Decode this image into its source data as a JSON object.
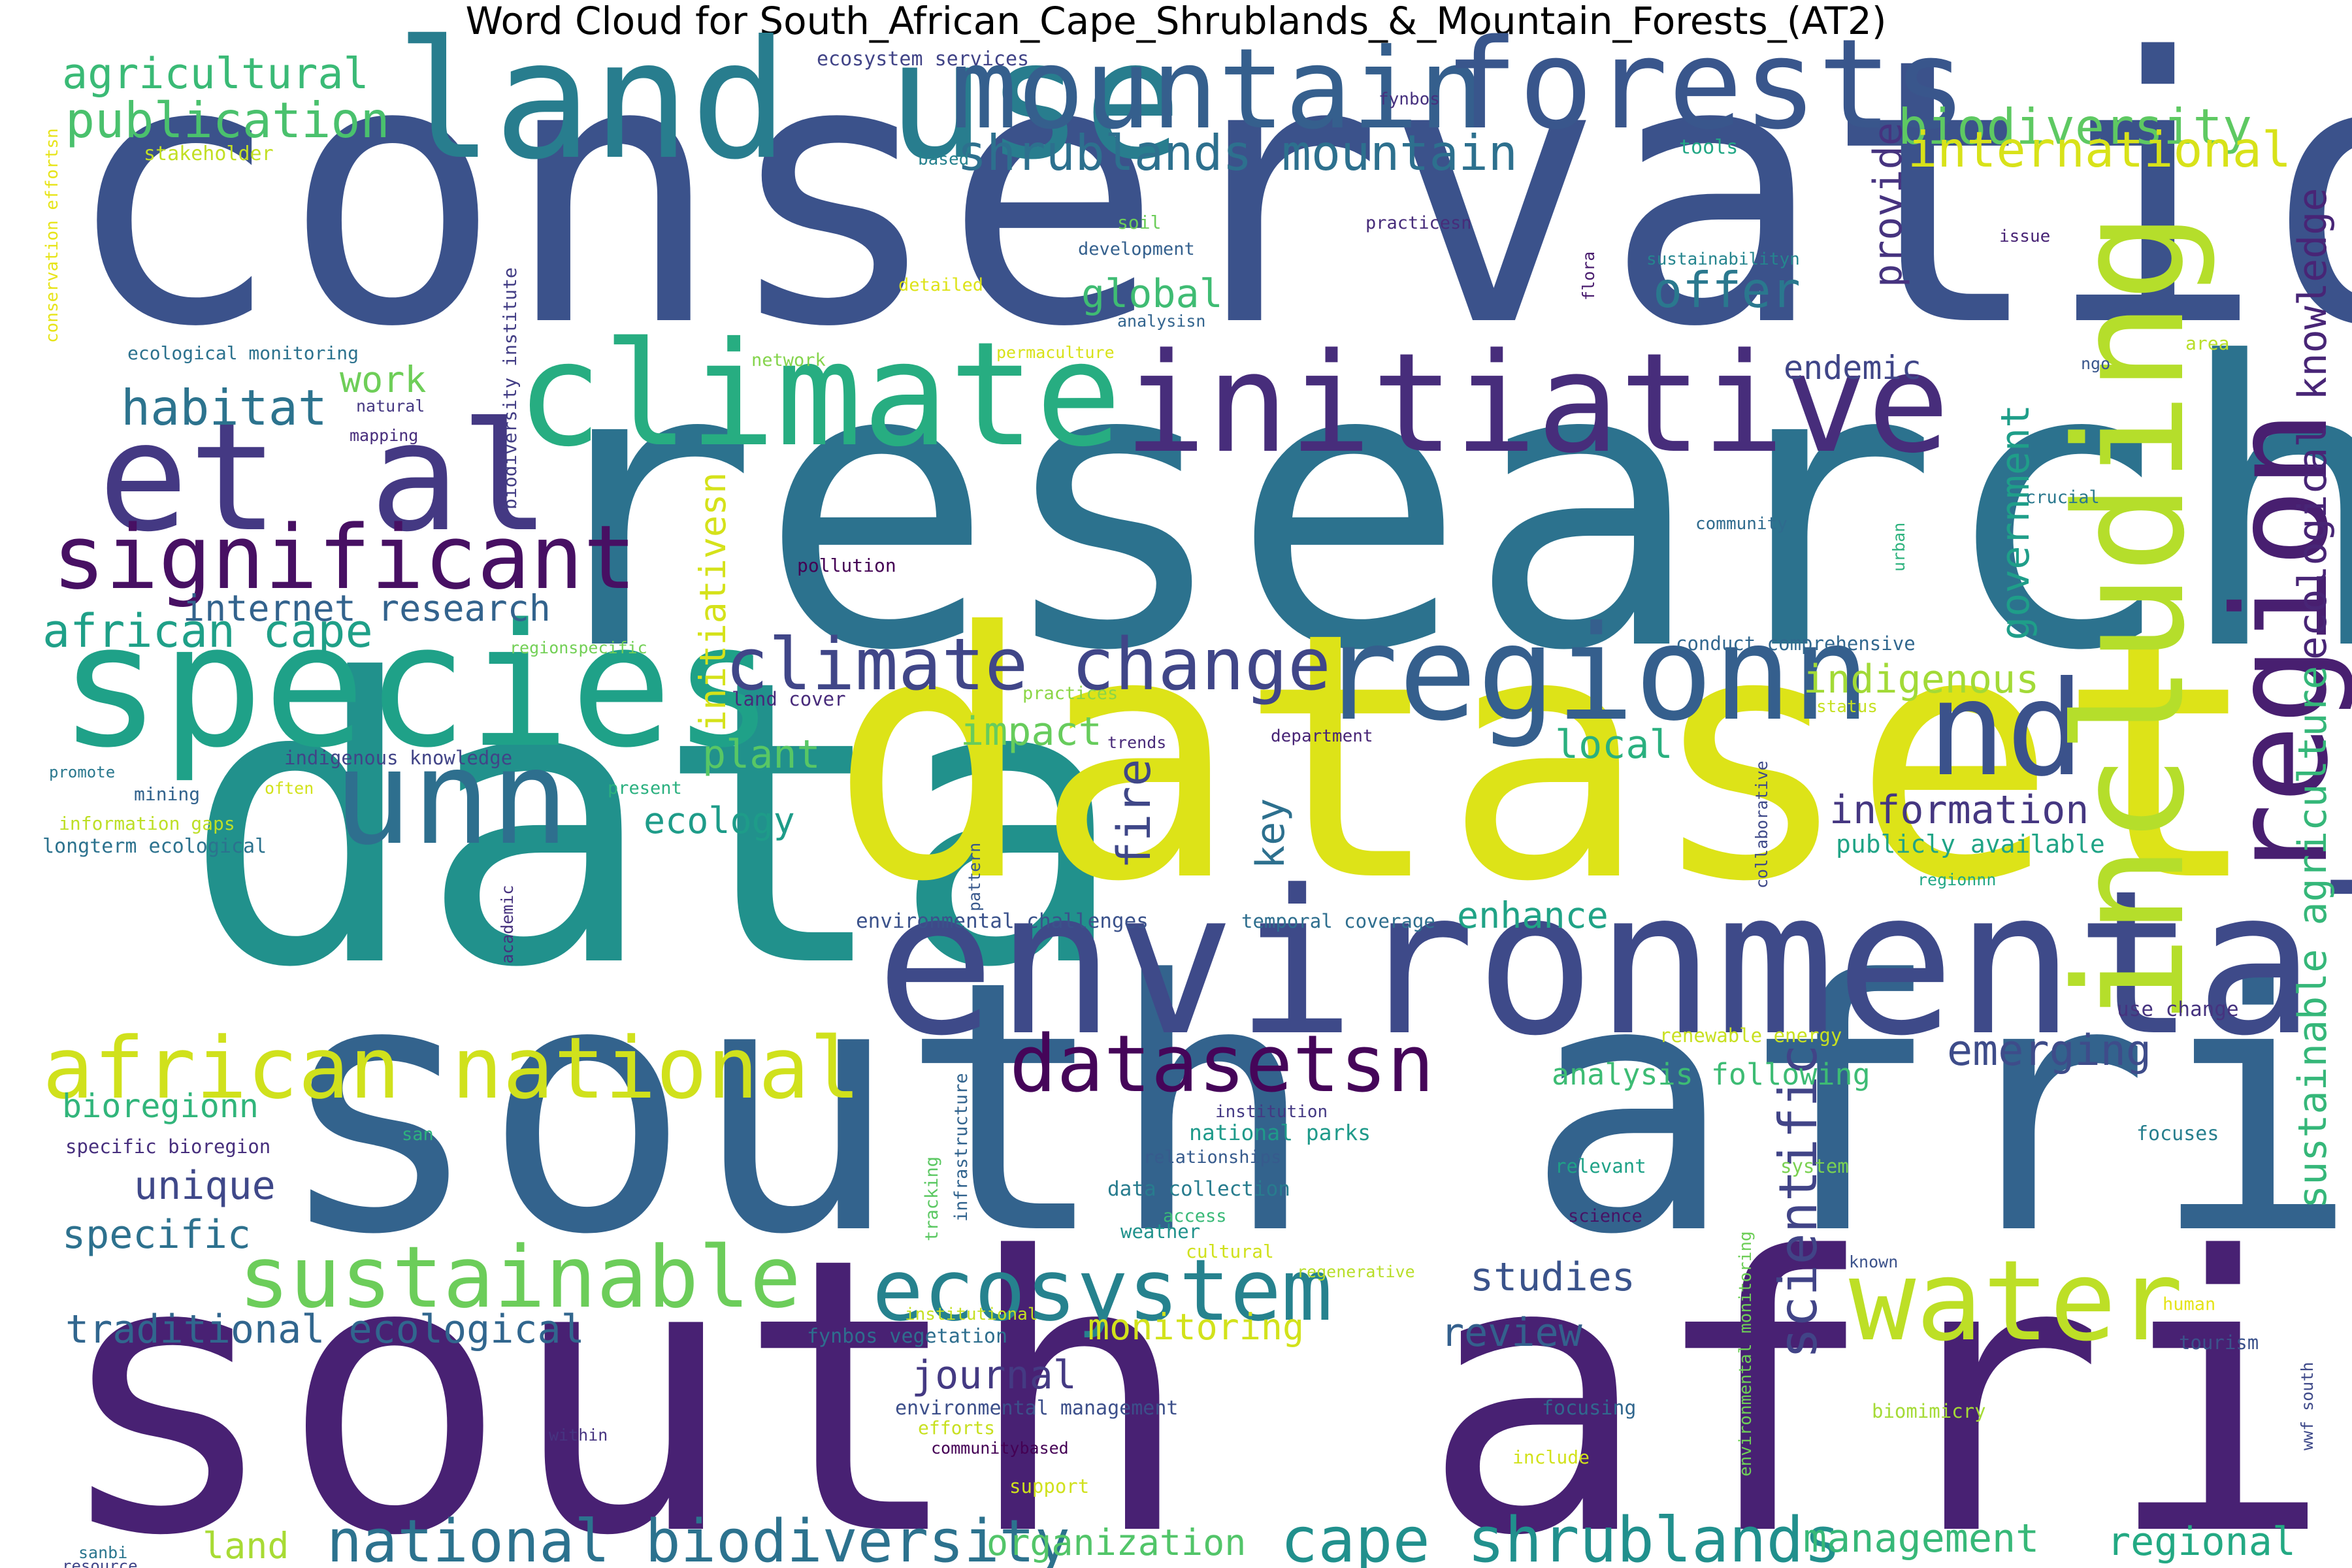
{
  "title": "Word Cloud for South_African_Cape_Shrublands_&_Mountain_Forests_(AT2)",
  "colormap": "viridis",
  "background": "#ffffff",
  "words": [
    {
      "text": "conservation",
      "color": "#3b528b"
    },
    {
      "text": "research",
      "color": "#2c728e"
    },
    {
      "text": "data",
      "color": "#21918c"
    },
    {
      "text": "dataset",
      "color": "#dde318"
    },
    {
      "text": "south africa",
      "color": "#33638d"
    },
    {
      "text": "south african",
      "color": "#482173"
    },
    {
      "text": "environmental",
      "color": "#3e4a89"
    },
    {
      "text": "land use",
      "color": "#287d8e"
    },
    {
      "text": "mountain",
      "color": "#355f8d"
    },
    {
      "text": "forests",
      "color": "#39568c"
    },
    {
      "text": "climate",
      "color": "#27ad81"
    },
    {
      "text": "initiative",
      "color": "#472d7b"
    },
    {
      "text": "et al",
      "color": "#443983"
    },
    {
      "text": "species",
      "color": "#1fa188"
    },
    {
      "text": "unn",
      "color": "#2e6f8e"
    },
    {
      "text": "regionn",
      "color": "#355f8d"
    },
    {
      "text": "nd",
      "color": "#3b528b"
    },
    {
      "text": "region",
      "color": "#481f70"
    },
    {
      "text": "including",
      "color": "#b5de2b"
    },
    {
      "text": "significant",
      "color": "#471063"
    },
    {
      "text": "water",
      "color": "#bddf26"
    },
    {
      "text": "ecosystem",
      "color": "#26828e"
    },
    {
      "text": "sustainable",
      "color": "#6ccd5a"
    },
    {
      "text": "african national",
      "color": "#d0e11c"
    },
    {
      "text": "datasetsn",
      "color": "#450559"
    },
    {
      "text": "climate change",
      "color": "#404688"
    },
    {
      "text": "cape shrublands",
      "color": "#21908d"
    },
    {
      "text": "national biodiversity",
      "color": "#2c728e"
    },
    {
      "text": "scientific",
      "color": "#414487"
    },
    {
      "text": "shrublands mountain",
      "color": "#2d708e"
    },
    {
      "text": "biodiversity",
      "color": "#5ec962"
    },
    {
      "text": "international",
      "color": "#d8e219"
    },
    {
      "text": "agricultural",
      "color": "#3aba76"
    },
    {
      "text": "publication",
      "color": "#4ac16d"
    },
    {
      "text": "habitat",
      "color": "#2c738e"
    },
    {
      "text": "work",
      "color": "#6ece58"
    },
    {
      "text": "global",
      "color": "#3fbc73"
    },
    {
      "text": "offer",
      "color": "#2a788e"
    },
    {
      "text": "provide",
      "color": "#46337f"
    },
    {
      "text": "ecological knowledge",
      "color": "#482576"
    },
    {
      "text": "sustainable agriculture",
      "color": "#35b779"
    },
    {
      "text": "government",
      "color": "#1f9e89"
    },
    {
      "text": "endemic",
      "color": "#404688"
    },
    {
      "text": "internet research",
      "color": "#33638d"
    },
    {
      "text": "african cape",
      "color": "#1fa088"
    },
    {
      "text": "initiativesn",
      "color": "#d5e21a"
    },
    {
      "text": "indigenous",
      "color": "#a2da37"
    },
    {
      "text": "impact",
      "color": "#67cc5c"
    },
    {
      "text": "plant",
      "color": "#58c765"
    },
    {
      "text": "local",
      "color": "#2ab07f"
    },
    {
      "text": "fire",
      "color": "#3f4788"
    },
    {
      "text": "key",
      "color": "#2d708e"
    },
    {
      "text": "ecology",
      "color": "#1e9c89"
    },
    {
      "text": "information",
      "color": "#453781"
    },
    {
      "text": "enhance",
      "color": "#20a386"
    },
    {
      "text": "emerging",
      "color": "#3e4c8a"
    },
    {
      "text": "bioregionn",
      "color": "#31b57b"
    },
    {
      "text": "unique",
      "color": "#3f4889"
    },
    {
      "text": "specific",
      "color": "#2d718e"
    },
    {
      "text": "traditional ecological",
      "color": "#31668e"
    },
    {
      "text": "monitoring",
      "color": "#d2e21b"
    },
    {
      "text": "review",
      "color": "#34608d"
    },
    {
      "text": "studies",
      "color": "#3a538b"
    },
    {
      "text": "journal",
      "color": "#443a83"
    },
    {
      "text": "land",
      "color": "#a8db34"
    },
    {
      "text": "organization",
      "color": "#52c569"
    },
    {
      "text": "management",
      "color": "#37b878"
    },
    {
      "text": "regional",
      "color": "#23a983"
    },
    {
      "text": "analysis following",
      "color": "#3dbc74"
    },
    {
      "text": "publicly available",
      "color": "#20a486"
    },
    {
      "text": "ecosystem services",
      "color": "#414487"
    },
    {
      "text": "fynbos",
      "color": "#46307e"
    },
    {
      "text": "stakeholder",
      "color": "#c2df23"
    },
    {
      "text": "based",
      "color": "#26818e"
    },
    {
      "text": "tools",
      "color": "#22a785"
    },
    {
      "text": "conservation effortsn",
      "color": "#e7e419"
    },
    {
      "text": "soil",
      "color": "#6ccd5a"
    },
    {
      "text": "practicesn",
      "color": "#472c7a"
    },
    {
      "text": "development",
      "color": "#34608d"
    },
    {
      "text": "sustainabilityn",
      "color": "#25858e"
    },
    {
      "text": "issue",
      "color": "#482475"
    },
    {
      "text": "detailed",
      "color": "#dde318"
    },
    {
      "text": "analysisn",
      "color": "#32648e"
    },
    {
      "text": "biodiversity institute",
      "color": "#433e85"
    },
    {
      "text": "flora",
      "color": "#481b6d"
    },
    {
      "text": "ecological monitoring",
      "color": "#2c728e"
    },
    {
      "text": "network",
      "color": "#84d44b"
    },
    {
      "text": "permaculture",
      "color": "#d8e219"
    },
    {
      "text": "area",
      "color": "#b8de29"
    },
    {
      "text": "ngo",
      "color": "#39568c"
    },
    {
      "text": "natural",
      "color": "#453882"
    },
    {
      "text": "mapping",
      "color": "#472d7b"
    },
    {
      "text": "crucial",
      "color": "#2a788e"
    },
    {
      "text": "community",
      "color": "#2f6b8e"
    },
    {
      "text": "urban",
      "color": "#2db27d"
    },
    {
      "text": "pollution",
      "color": "#440154"
    },
    {
      "text": "regionspecific",
      "color": "#73d056"
    },
    {
      "text": "conduct comprehensive",
      "color": "#31678e"
    },
    {
      "text": "land cover",
      "color": "#472a7a"
    },
    {
      "text": "practices",
      "color": "#8bd646"
    },
    {
      "text": "status",
      "color": "#c5e021"
    },
    {
      "text": "trends",
      "color": "#482979"
    },
    {
      "text": "department",
      "color": "#482576"
    },
    {
      "text": "indigenous knowledge",
      "color": "#414487"
    },
    {
      "text": "promote",
      "color": "#2a788e"
    },
    {
      "text": "often",
      "color": "#d2e21b"
    },
    {
      "text": "present",
      "color": "#2ab07f"
    },
    {
      "text": "mining",
      "color": "#33638d"
    },
    {
      "text": "information gaps",
      "color": "#bddf26"
    },
    {
      "text": "longterm ecological",
      "color": "#2c728e"
    },
    {
      "text": "pattern",
      "color": "#38588c"
    },
    {
      "text": "collaborative",
      "color": "#3e4989"
    },
    {
      "text": "regionnn",
      "color": "#22a785"
    },
    {
      "text": "environmental challenges",
      "color": "#3b528b"
    },
    {
      "text": "temporal coverage",
      "color": "#2e6e8e"
    },
    {
      "text": "academic",
      "color": "#46327e"
    },
    {
      "text": "use change",
      "color": "#46337f"
    },
    {
      "text": "renewable energy",
      "color": "#c8e020"
    },
    {
      "text": "infrastructure",
      "color": "#32648e"
    },
    {
      "text": "tracking",
      "color": "#5cc863"
    },
    {
      "text": "institution",
      "color": "#443983"
    },
    {
      "text": "national parks",
      "color": "#1f9a8a"
    },
    {
      "text": "san",
      "color": "#2db27d"
    },
    {
      "text": "specific bioregion",
      "color": "#472f7d"
    },
    {
      "text": "relationships",
      "color": "#375b8d"
    },
    {
      "text": "relevant",
      "color": "#1fa287"
    },
    {
      "text": "system",
      "color": "#7ad151"
    },
    {
      "text": "focuses",
      "color": "#277f8e"
    },
    {
      "text": "environmental monitoring",
      "color": "#6ece58"
    },
    {
      "text": "data collection",
      "color": "#287c8e"
    },
    {
      "text": "access",
      "color": "#39b977"
    },
    {
      "text": "weather",
      "color": "#20928c"
    },
    {
      "text": "cultural",
      "color": "#d0e11c"
    },
    {
      "text": "science",
      "color": "#471365"
    },
    {
      "text": "regenerative",
      "color": "#b8de29"
    },
    {
      "text": "known",
      "color": "#3b528b"
    },
    {
      "text": "wwf south",
      "color": "#3e4989"
    },
    {
      "text": "institutional",
      "color": "#c5e021"
    },
    {
      "text": "human",
      "color": "#e5e419"
    },
    {
      "text": "tourism",
      "color": "#3b528b"
    },
    {
      "text": "fynbos vegetation",
      "color": "#2e6e8e"
    },
    {
      "text": "environmental management",
      "color": "#3c4f8a"
    },
    {
      "text": "efforts",
      "color": "#c8e020"
    },
    {
      "text": "within",
      "color": "#463480"
    },
    {
      "text": "focusing",
      "color": "#31678e"
    },
    {
      "text": "biomimicry",
      "color": "#a5db36"
    },
    {
      "text": "communitybased",
      "color": "#440154"
    },
    {
      "text": "include",
      "color": "#d2e21b"
    },
    {
      "text": "support",
      "color": "#d0e11c"
    },
    {
      "text": "sanbi",
      "color": "#2a768e"
    },
    {
      "text": "resource",
      "color": "#404588"
    }
  ]
}
